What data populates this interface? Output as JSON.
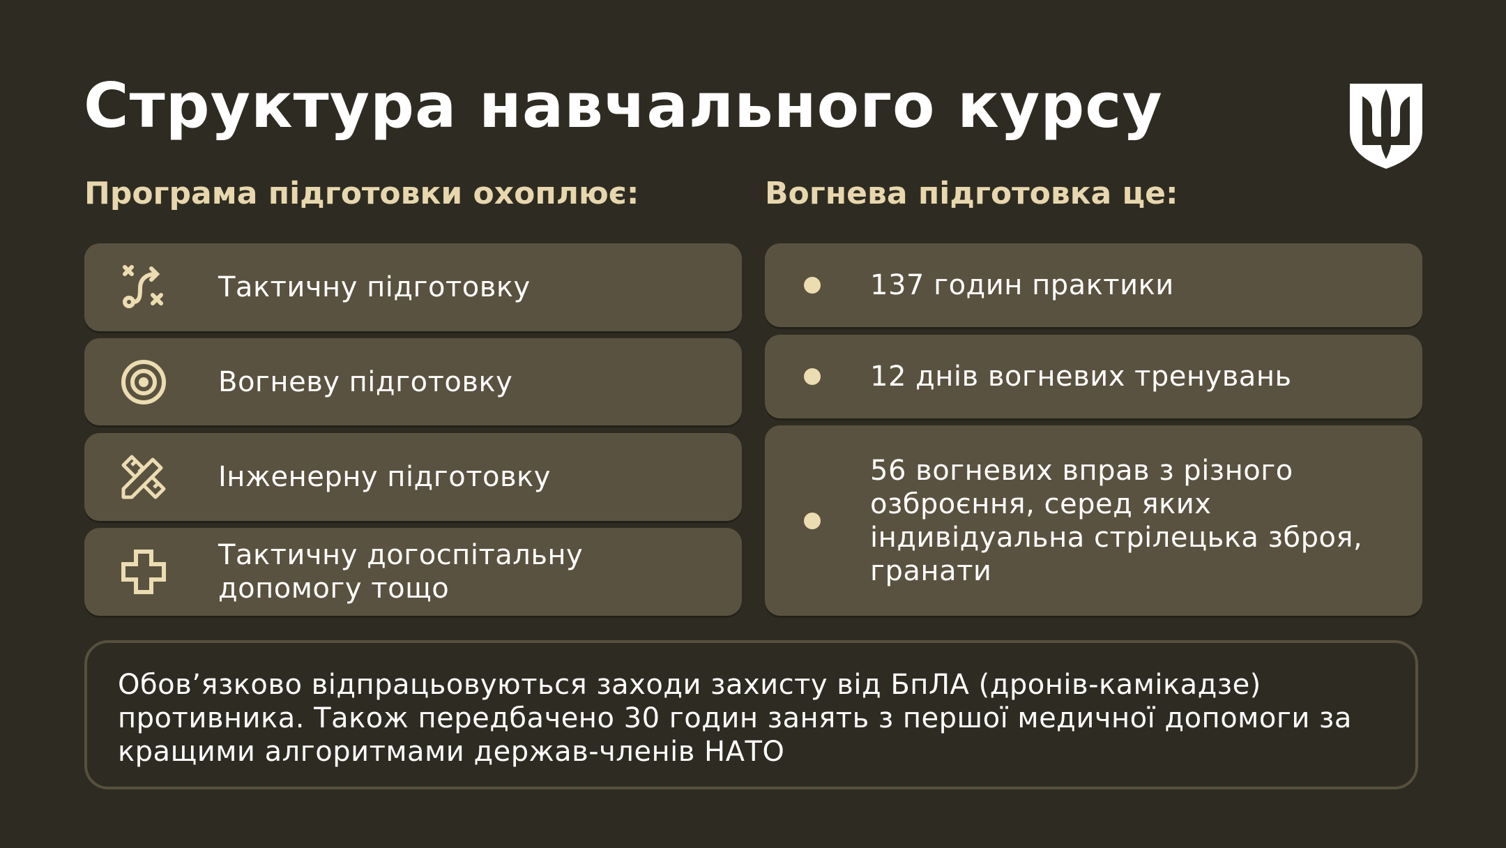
{
  "title": "Структура навчального курсу",
  "left": {
    "heading": "Програма підготовки охоплює:",
    "items": [
      {
        "icon": "tactical-route-icon",
        "label": "Тактичну підготовку"
      },
      {
        "icon": "target-icon",
        "label": "Вогневу підготовку"
      },
      {
        "icon": "ruler-pencil-icon",
        "label": "Інженерну підготовку"
      },
      {
        "icon": "medical-cross-icon",
        "label": "Тактичну догоспітальну допомогу тощо"
      }
    ]
  },
  "right": {
    "heading": "Вогнева підготовка це:",
    "items": [
      {
        "label": "137 годин практики"
      },
      {
        "label": "12 днів вогневих тренувань"
      },
      {
        "label": "56 вогневих вправ з різного озброєння, серед яких індивідуальна стрілецька зброя, гранати"
      }
    ]
  },
  "note": "Обов’язково відпрацьовуються заходи захисту від БпЛА (дронів-камікадзе) противника. Також передбачено 30 годин занять з першої медичної допомоги за кращими алгоритмами держав-членів НАТО",
  "colors": {
    "background": "#2e2c22",
    "card": "#5a5240",
    "accent": "#e8d7ae",
    "text": "#ffffff"
  }
}
